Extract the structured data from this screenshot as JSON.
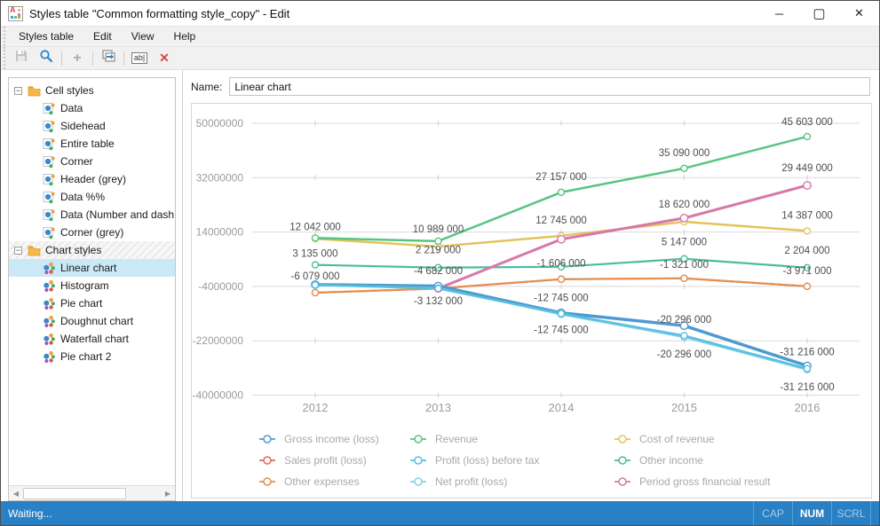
{
  "window": {
    "title": "Styles table \"Common formatting style_copy\" - Edit",
    "controls": {
      "minimize": "─",
      "maximize": "▢",
      "close": "✕"
    }
  },
  "menu": {
    "items": [
      "Styles table",
      "Edit",
      "View",
      "Help"
    ]
  },
  "toolbar": {
    "buttons": [
      "save",
      "search",
      "add",
      "duplicate",
      "rename",
      "delete"
    ],
    "rename_glyph": "ab|",
    "delete_glyph": "✕",
    "add_glyph": "+"
  },
  "sidebar": {
    "groups": [
      {
        "label": "Cell styles",
        "expanded": true,
        "hatched": false,
        "items": [
          {
            "label": "Data"
          },
          {
            "label": "Sidehead"
          },
          {
            "label": "Entire table"
          },
          {
            "label": "Corner"
          },
          {
            "label": "Header (grey)"
          },
          {
            "label": "Data %%"
          },
          {
            "label": "Data (Number and dash"
          },
          {
            "label": "Corner (grey)"
          }
        ]
      },
      {
        "label": "Chart styles",
        "expanded": true,
        "hatched": true,
        "items": [
          {
            "label": "Linear chart",
            "selected": true
          },
          {
            "label": "Histogram"
          },
          {
            "label": "Pie chart"
          },
          {
            "label": "Doughnut chart"
          },
          {
            "label": "Waterfall chart"
          },
          {
            "label": "Pie chart 2"
          }
        ]
      }
    ]
  },
  "name_row": {
    "label": "Name:",
    "value": "Linear chart"
  },
  "chart_data": {
    "type": "line",
    "x": [
      2012,
      2013,
      2014,
      2015,
      2016
    ],
    "y_ticks": [
      50000000,
      32000000,
      14000000,
      -4000000,
      -22000000,
      -40000000
    ],
    "ylim": [
      -40000000,
      50000000
    ],
    "grid": true,
    "legend_position": "bottom",
    "series": [
      {
        "key": "sales_profit",
        "name": "Sales profit (loss)",
        "color": "#e2685c",
        "width": 2,
        "values": [
          -6079000,
          -4682000,
          -1606000,
          -1321000,
          -3971000
        ]
      },
      {
        "key": "other_expenses",
        "name": "Other expenses",
        "color": "#e39050",
        "width": 2.2,
        "values": [
          -6079000,
          -4682000,
          -1606000,
          -1321000,
          -3971000
        ]
      },
      {
        "key": "cost_of_revenue",
        "name": "Cost of revenue",
        "color": "#e2c45c",
        "width": 2.5,
        "values": [
          11800000,
          9200000,
          12745000,
          17400000,
          14387000
        ]
      },
      {
        "key": "other_income",
        "name": "Other income",
        "color": "#4cbd9c",
        "width": 2.2,
        "values": [
          3135000,
          2219000,
          2500000,
          5147000,
          2204000
        ]
      },
      {
        "key": "revenue",
        "name": "Revenue",
        "color": "#57c57f",
        "width": 2.5,
        "values": [
          12042000,
          10989000,
          27157000,
          35090000,
          45603000
        ]
      },
      {
        "key": "period_gross",
        "name": "Period gross financial result",
        "color": "#d877a9",
        "width": 3,
        "values": [
          null,
          -4682000,
          11600000,
          18620000,
          29449000
        ]
      },
      {
        "key": "gross_income",
        "name": "Gross income (loss)",
        "color": "#4e9ad0",
        "width": 3.5,
        "values": [
          -3400000,
          -3900000,
          -12745000,
          -17000000,
          -30300000
        ]
      },
      {
        "key": "net_profit",
        "name": "Net profit (loss)",
        "color": "#7fd0e8",
        "width": 2,
        "values": [
          -3600000,
          -4500000,
          -13300000,
          -20800000,
          -31600000
        ]
      },
      {
        "key": "profit_before_tax",
        "name": "Profit (loss) before tax",
        "color": "#58bfdf",
        "width": 2.4,
        "values": [
          -3500000,
          -4682000,
          -13000000,
          -20296000,
          -31216000
        ]
      }
    ],
    "legend_columns": [
      [
        "gross_income",
        "sales_profit",
        "other_expenses"
      ],
      [
        "revenue",
        "profit_before_tax",
        "net_profit"
      ],
      [
        "cost_of_revenue",
        "other_income",
        "period_gross"
      ]
    ],
    "point_labels": [
      {
        "x": 0,
        "v": 12042000,
        "dy": -13,
        "text": "12 042 000"
      },
      {
        "x": 0,
        "v": 3135000,
        "dy": -13,
        "text": "3 135 000"
      },
      {
        "x": 0,
        "v": -6079000,
        "dy": -19,
        "text": "-6 079 000"
      },
      {
        "x": 1,
        "v": 10989000,
        "dy": -14,
        "text": "10 989 000"
      },
      {
        "x": 1,
        "v": 2219000,
        "dy": -20,
        "text": "2 219 000"
      },
      {
        "x": 1,
        "v": -4682000,
        "dy": -20,
        "text": "-4 682 000"
      },
      {
        "x": 1,
        "v": -3132000,
        "dy": 19,
        "text": "-3 132 000"
      },
      {
        "x": 2,
        "v": 27157000,
        "dy": -18,
        "text": "27 157 000"
      },
      {
        "x": 2,
        "v": 12745000,
        "dy": -18,
        "text": "12 745 000"
      },
      {
        "x": 2,
        "v": -1606000,
        "dy": -18,
        "text": "-1 606 000"
      },
      {
        "x": 2,
        "v": -12745000,
        "dy": -17,
        "text": "-12 745 000"
      },
      {
        "x": 2,
        "v": -12745000,
        "dy": 19,
        "text": "-12 745 000"
      },
      {
        "x": 3,
        "v": 35090000,
        "dy": -18,
        "text": "35 090 000"
      },
      {
        "x": 3,
        "v": 18620000,
        "dy": -16,
        "text": "18 620 000"
      },
      {
        "x": 3,
        "v": 5147000,
        "dy": -19,
        "text": "5 147 000"
      },
      {
        "x": 3,
        "v": -1321000,
        "dy": -16,
        "text": "-1 321 000"
      },
      {
        "x": 3,
        "v": -17000000,
        "dy": -7,
        "text": "-20 296 000"
      },
      {
        "x": 3,
        "v": -20800000,
        "dy": 19,
        "text": "-20 296 000"
      },
      {
        "x": 4,
        "v": 45603000,
        "dy": -17,
        "text": "45 603 000"
      },
      {
        "x": 4,
        "v": 29449000,
        "dy": -20,
        "text": "29 449 000"
      },
      {
        "x": 4,
        "v": 14387000,
        "dy": -18,
        "text": "14 387 000"
      },
      {
        "x": 4,
        "v": 2204000,
        "dy": -20,
        "text": "2 204 000"
      },
      {
        "x": 4,
        "v": -3971000,
        "dy": -18,
        "text": "-3 971 000"
      },
      {
        "x": 4,
        "v": -30300000,
        "dy": -16,
        "text": "-31 216 000"
      },
      {
        "x": 4,
        "v": -31600000,
        "dy": 19,
        "text": "-31 216 000"
      }
    ]
  },
  "statusbar": {
    "message": "Waiting...",
    "keys": [
      {
        "label": "CAP",
        "active": false
      },
      {
        "label": "NUM",
        "active": true
      },
      {
        "label": "SCRL",
        "active": false
      }
    ]
  },
  "colors": {
    "status_bg": "#2980c4",
    "selection": "#cbe8f7",
    "grid": "#dadada",
    "axis_text": "#9b9b9b",
    "point_label": "#4d4d4d",
    "legend_text": "#a9a9a9"
  }
}
